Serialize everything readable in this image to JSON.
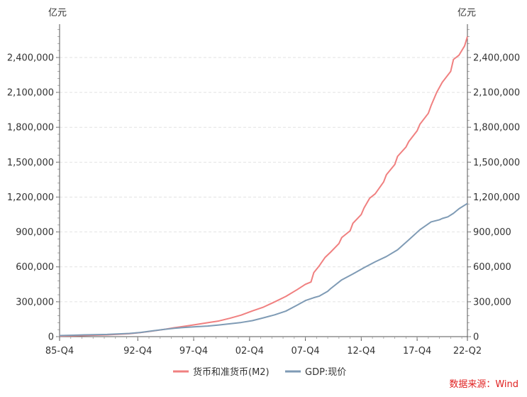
{
  "chart_data": {
    "type": "line",
    "unit_left": "亿元",
    "unit_right": "亿元",
    "y_ticks": [
      0,
      300000,
      600000,
      900000,
      1200000,
      1500000,
      1800000,
      2100000,
      2400000
    ],
    "y_tick_labels": [
      "0",
      "300,000",
      "600,000",
      "900,000",
      "1,200,000",
      "1,500,000",
      "1,800,000",
      "2,100,000",
      "2,400,000"
    ],
    "ylim": [
      0,
      2650000
    ],
    "x_tick_labels": [
      "85-Q4",
      "92-Q4",
      "97-Q4",
      "02-Q4",
      "07-Q4",
      "12-Q4",
      "17-Q4",
      "22-Q2"
    ],
    "x_tick_values": [
      1985.75,
      1992.75,
      1997.75,
      2002.75,
      2007.75,
      2012.75,
      2017.75,
      2022.25
    ],
    "xlim": [
      1985.75,
      2022.25
    ],
    "grid": true,
    "legend_position": "bottom",
    "series": [
      {
        "name": "货币和准货币(M2)",
        "color": "#f08080",
        "points": [
          [
            1985.75,
            5200
          ],
          [
            1987.0,
            8000
          ],
          [
            1988.0,
            10000
          ],
          [
            1990.0,
            15300
          ],
          [
            1992.0,
            25400
          ],
          [
            1993.0,
            35000
          ],
          [
            1994.0,
            46900
          ],
          [
            1995.0,
            60700
          ],
          [
            1996.0,
            76100
          ],
          [
            1997.0,
            90000
          ],
          [
            1998.0,
            104500
          ],
          [
            1999.0,
            119900
          ],
          [
            2000.0,
            134600
          ],
          [
            2001.0,
            158300
          ],
          [
            2002.0,
            185000
          ],
          [
            2003.0,
            221200
          ],
          [
            2004.0,
            254100
          ],
          [
            2005.0,
            298800
          ],
          [
            2006.0,
            345600
          ],
          [
            2007.0,
            403400
          ],
          [
            2007.75,
            450000
          ],
          [
            2008.25,
            470000
          ],
          [
            2008.5,
            550000
          ],
          [
            2009.0,
            610000
          ],
          [
            2009.5,
            680000
          ],
          [
            2010.0,
            725800
          ],
          [
            2010.75,
            800000
          ],
          [
            2011.0,
            851600
          ],
          [
            2011.75,
            910000
          ],
          [
            2012.0,
            974100
          ],
          [
            2012.75,
            1050000
          ],
          [
            2013.0,
            1106500
          ],
          [
            2013.5,
            1190000
          ],
          [
            2014.0,
            1228400
          ],
          [
            2014.75,
            1330000
          ],
          [
            2015.0,
            1392300
          ],
          [
            2015.75,
            1480000
          ],
          [
            2016.0,
            1550100
          ],
          [
            2016.75,
            1630000
          ],
          [
            2017.0,
            1676800
          ],
          [
            2017.75,
            1770000
          ],
          [
            2018.0,
            1826700
          ],
          [
            2018.75,
            1920000
          ],
          [
            2019.0,
            1986500
          ],
          [
            2019.5,
            2100000
          ],
          [
            2020.0,
            2186800
          ],
          [
            2020.75,
            2280000
          ],
          [
            2021.0,
            2382900
          ],
          [
            2021.5,
            2420000
          ],
          [
            2022.0,
            2500000
          ],
          [
            2022.25,
            2580000
          ]
        ]
      },
      {
        "name": "GDP:现价",
        "color": "#7f9bb5",
        "points": [
          [
            1985.75,
            9000
          ],
          [
            1987.0,
            12000
          ],
          [
            1988.0,
            15000
          ],
          [
            1990.0,
            18900
          ],
          [
            1992.0,
            27200
          ],
          [
            1993.0,
            35700
          ],
          [
            1994.0,
            48600
          ],
          [
            1995.0,
            61300
          ],
          [
            1996.0,
            71800
          ],
          [
            1997.0,
            79700
          ],
          [
            1998.0,
            85200
          ],
          [
            1999.0,
            90600
          ],
          [
            2000.0,
            100300
          ],
          [
            2001.0,
            111000
          ],
          [
            2002.0,
            121700
          ],
          [
            2003.0,
            137400
          ],
          [
            2004.0,
            161800
          ],
          [
            2005.0,
            187300
          ],
          [
            2006.0,
            219400
          ],
          [
            2007.0,
            270100
          ],
          [
            2007.75,
            310000
          ],
          [
            2008.5,
            335000
          ],
          [
            2009.0,
            348500
          ],
          [
            2009.75,
            390000
          ],
          [
            2010.0,
            412100
          ],
          [
            2011.0,
            487900
          ],
          [
            2012.0,
            538600
          ],
          [
            2013.0,
            592900
          ],
          [
            2014.0,
            643600
          ],
          [
            2015.0,
            688900
          ],
          [
            2016.0,
            746400
          ],
          [
            2017.0,
            832000
          ],
          [
            2018.0,
            919300
          ],
          [
            2019.0,
            986500
          ],
          [
            2019.75,
            1005000
          ],
          [
            2020.0,
            1015900
          ],
          [
            2020.5,
            1030000
          ],
          [
            2021.0,
            1060000
          ],
          [
            2021.5,
            1100000
          ],
          [
            2022.0,
            1130000
          ],
          [
            2022.25,
            1145000
          ]
        ]
      }
    ]
  },
  "source_text": "数据来源：Wind"
}
